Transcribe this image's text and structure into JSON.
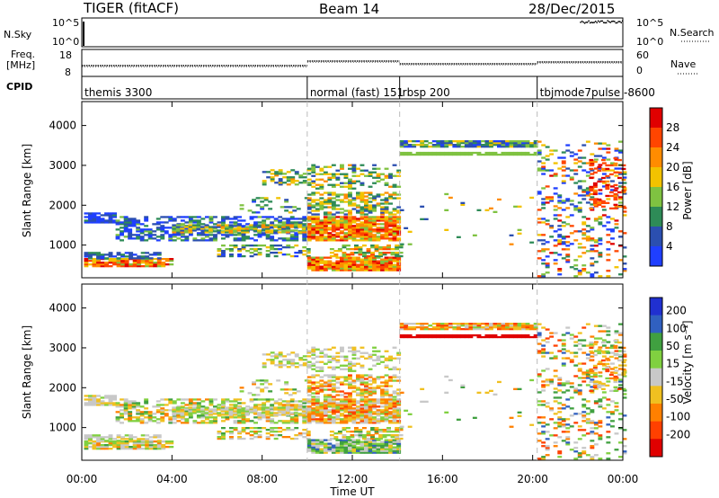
{
  "header": {
    "title": "TIGER (fitACF)",
    "beam": "Beam 14",
    "date": "28/Dec/2015"
  },
  "status_panels": {
    "nsky": {
      "label": "N.Sky",
      "ticks": [
        "10^5",
        "10^0"
      ]
    },
    "nsearch": {
      "label": "N.Search",
      "ticks": [
        "10^5",
        "10^0"
      ]
    },
    "freq": {
      "label_line1": "Freq.",
      "label_line2": "[MHz]",
      "ticks": [
        "18",
        "8"
      ]
    },
    "nave": {
      "label": "Nave",
      "ticks": [
        "60",
        "0"
      ]
    },
    "cpid": {
      "label": "CPID",
      "segments": [
        {
          "start_hour": 0,
          "end_hour": 10,
          "text": "themis 3300"
        },
        {
          "start_hour": 10,
          "end_hour": 14.1,
          "text": "normal (fast) 151"
        },
        {
          "start_hour": 14.1,
          "end_hour": 20.2,
          "text": "rbsp 200"
        },
        {
          "start_hour": 20.2,
          "end_hour": 24,
          "text": "tbjmode7pulse -8600"
        }
      ]
    }
  },
  "chart_data": [
    {
      "type": "heatmap",
      "name": "power",
      "ylabel": "Slant Range [km]",
      "yticks": [
        "1000",
        "2000",
        "3000",
        "4000"
      ],
      "ylim": [
        180,
        4600
      ],
      "colorbar_label": "Power [dB]",
      "colorbar_ticks": [
        "4",
        "8",
        "12",
        "16",
        "20",
        "24",
        "28"
      ],
      "colors": [
        "#1f3fff",
        "#2b4fb0",
        "#2e8b57",
        "#7fc241",
        "#f2c200",
        "#ff8c00",
        "#ff4500",
        "#e00000"
      ]
    },
    {
      "type": "heatmap",
      "name": "velocity",
      "ylabel": "Slant Range [km]",
      "yticks": [
        "1000",
        "2000",
        "3000",
        "4000"
      ],
      "ylim": [
        180,
        4600
      ],
      "colorbar_label": "Velocity [m s⁻¹]",
      "colorbar_ticks": [
        "200",
        "100",
        "50",
        "15",
        "-15",
        "-50",
        "-100",
        "-200"
      ],
      "colors": [
        "#2030d0",
        "#3060c0",
        "#40a040",
        "#80d040",
        "#c8c8c8",
        "#f0c020",
        "#ff8000",
        "#ff4000",
        "#e00000"
      ]
    }
  ],
  "xaxis": {
    "label": "Time UT",
    "ticks": [
      "00:00",
      "04:00",
      "08:00",
      "12:00",
      "16:00",
      "20:00",
      "00:00"
    ],
    "range_hours": [
      0,
      24
    ]
  }
}
